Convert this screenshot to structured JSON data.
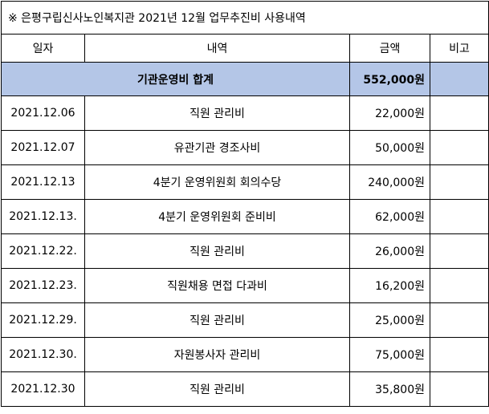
{
  "header": {
    "title": "※ 은평구립신사노인복지관 2021년 12월 업무추진비 사용내역"
  },
  "table": {
    "columns": [
      "일자",
      "내역",
      "금액",
      "비고"
    ],
    "total": {
      "label": "기관운영비 합계",
      "amount": "552,000원"
    },
    "rows": [
      [
        "2021.12.06",
        "직원 관리비",
        "22,000원"
      ],
      [
        "2021.12.07",
        "유관기관 경조사비",
        "50,000원"
      ],
      [
        "2021.12.13",
        "4분기 운영위원회 회의수당",
        "240,000원"
      ],
      [
        "2021.12.13.",
        "4분기 운영위원회 준비비",
        "62,000원"
      ],
      [
        "2021.12.22.",
        "직원 관리비",
        "26,000원"
      ],
      [
        "2021.12.23.",
        "직원채용 면접 다과비",
        "16,200원"
      ],
      [
        "2021.12.29.",
        "직원 관리비",
        "25,000원"
      ],
      [
        "2021.12.30.",
        "자원봉사자 관리비",
        "75,000원"
      ],
      [
        "2021.12.30",
        "직원 관리비",
        "35,800원"
      ]
    ]
  }
}
